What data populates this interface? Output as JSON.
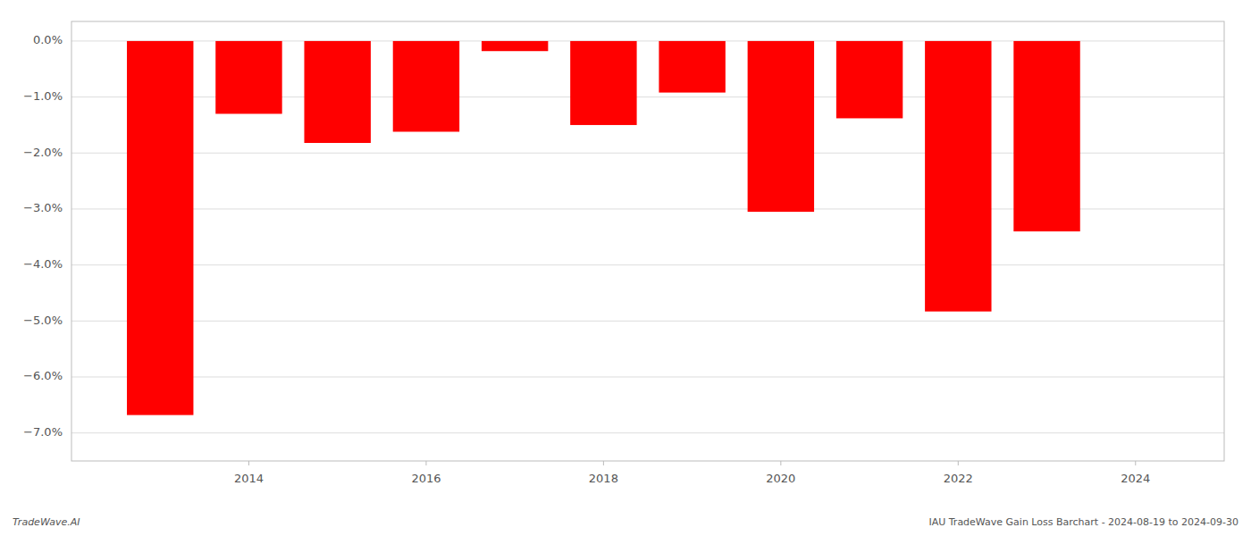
{
  "chart_data": {
    "type": "bar",
    "x": [
      2013,
      2014,
      2015,
      2016,
      2017,
      2018,
      2019,
      2020,
      2021,
      2022,
      2023
    ],
    "values": [
      -6.68,
      -1.3,
      -1.82,
      -1.62,
      -0.18,
      -1.5,
      -0.92,
      -3.05,
      -1.38,
      -4.83,
      -3.4
    ],
    "color": "#ff0000",
    "ylim": [
      -7.5,
      0.35
    ],
    "yticks": [
      {
        "value": 0.0,
        "label": "0.0%"
      },
      {
        "value": -1.0,
        "label": "−1.0%"
      },
      {
        "value": -2.0,
        "label": "−2.0%"
      },
      {
        "value": -3.0,
        "label": "−3.0%"
      },
      {
        "value": -4.0,
        "label": "−4.0%"
      },
      {
        "value": -5.0,
        "label": "−5.0%"
      },
      {
        "value": -6.0,
        "label": "−6.0%"
      },
      {
        "value": -7.0,
        "label": "−7.0%"
      }
    ],
    "xlim": [
      2012.0,
      2025.0
    ],
    "xticks": [
      2014,
      2016,
      2018,
      2020,
      2022,
      2024
    ],
    "grid": true,
    "annotations": [
      "TradeWave.AI",
      "IAU TradeWave Gain Loss Barchart - 2024-08-19 to 2024-09-30"
    ]
  }
}
